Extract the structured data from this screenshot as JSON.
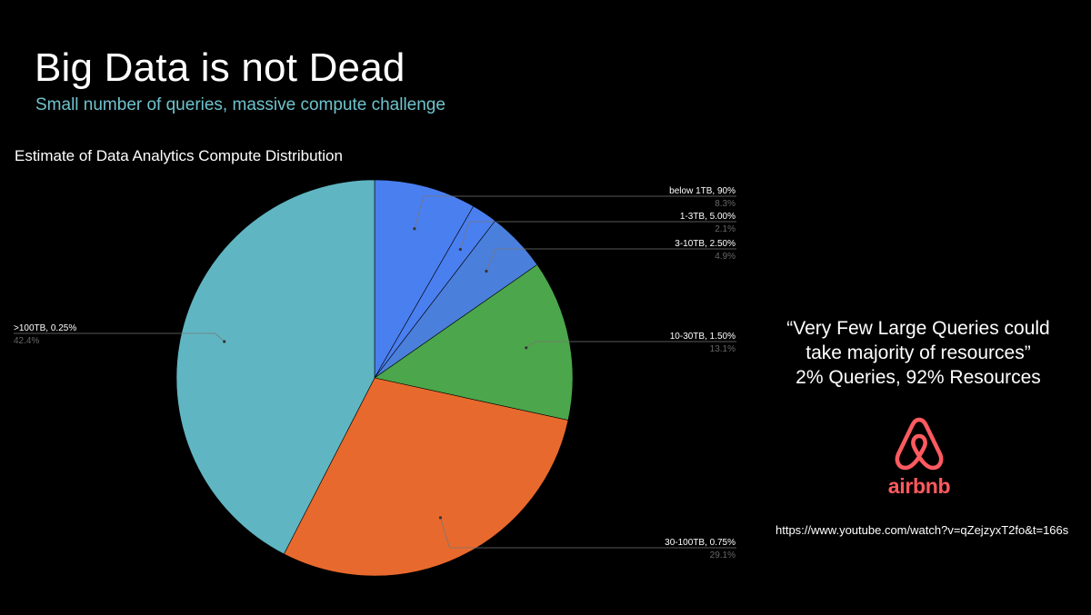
{
  "slide": {
    "title": "Big Data is not Dead",
    "subtitle": "Small number of queries, massive compute challenge",
    "quote_lines": [
      "“Very Few Large Queries could",
      "take majority of resources”",
      "2% Queries, 92% Resources"
    ],
    "logo_text": "airbnb",
    "url": "https://www.youtube.com/watch?v=qZejzyxT2fo&t=166s"
  },
  "chart_data": {
    "type": "pie",
    "title": "Estimate of Data Analytics Compute Distribution",
    "slices": [
      {
        "label": "below 1TB, 90%",
        "percent_label": "8.3%",
        "value": 8.3,
        "color": "#4a7ff0"
      },
      {
        "label": "1-3TB, 5.00%",
        "percent_label": "2.1%",
        "value": 2.1,
        "color": "#4a7ff0"
      },
      {
        "label": "3-10TB, 2.50%",
        "percent_label": "4.9%",
        "value": 4.9,
        "color": "#4b7fdc"
      },
      {
        "label": "10-30TB, 1.50%",
        "percent_label": "13.1%",
        "value": 13.1,
        "color": "#4ca64b"
      },
      {
        "label": "30-100TB, 0.75%",
        "percent_label": "29.1%",
        "value": 29.1,
        "color": "#e8692d"
      },
      {
        "label": ">100TB, 0.25%",
        "percent_label": "42.4%",
        "value": 42.4,
        "color": "#5fb6c2"
      }
    ]
  },
  "colors": {
    "background": "#000000",
    "subtitle": "#6ec3cd",
    "airbnb": "#ff5a5f"
  }
}
